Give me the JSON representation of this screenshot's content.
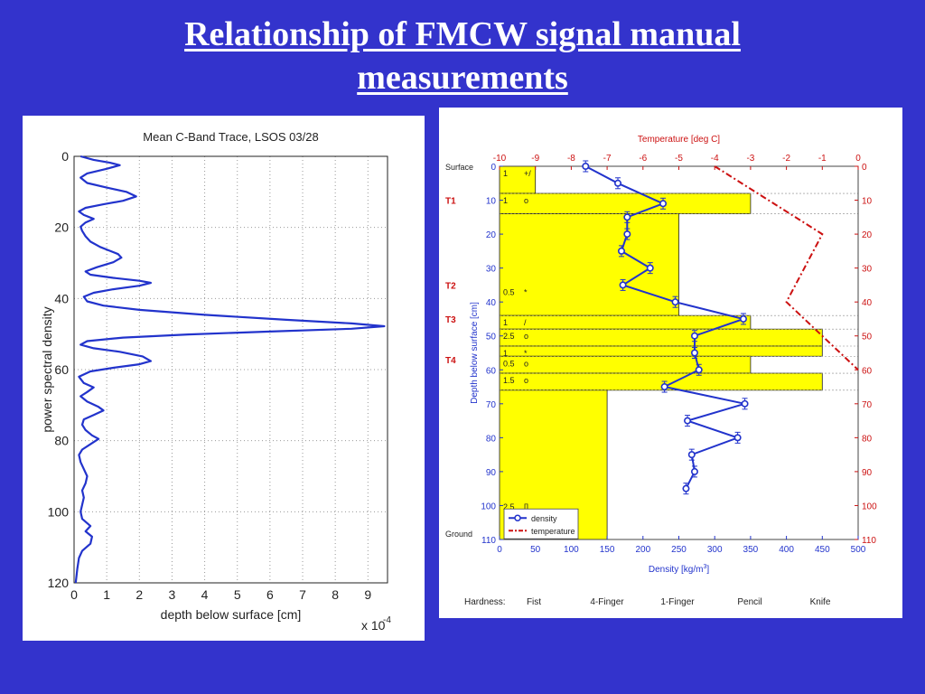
{
  "slide": {
    "title_line1": "Relationship of FMCW signal manual",
    "title_line2": "measurements"
  },
  "chart_data": [
    {
      "type": "line",
      "title": "Mean C-Band Trace, LSOS 03/28",
      "xlabel": "depth below surface [cm]",
      "ylabel": "power spectral density",
      "x_multiplier": "x 10",
      "x_multiplier_exp": "-4",
      "xlim": [
        0,
        9.6
      ],
      "ylim": [
        0,
        120
      ],
      "y_inverted": true,
      "grid": true,
      "xticks": [
        0,
        1,
        2,
        3,
        4,
        5,
        6,
        7,
        8,
        9
      ],
      "yticks": [
        0,
        20,
        40,
        60,
        80,
        100,
        120
      ],
      "series": [
        {
          "color": "#2233cc",
          "points": [
            [
              0.2,
              0
            ],
            [
              0.6,
              1
            ],
            [
              1.1,
              1.8
            ],
            [
              1.4,
              2.5
            ],
            [
              1.0,
              3.5
            ],
            [
              0.4,
              4.8
            ],
            [
              0.2,
              6
            ],
            [
              0.4,
              7.5
            ],
            [
              1.0,
              8.8
            ],
            [
              1.6,
              10
            ],
            [
              1.9,
              11.3
            ],
            [
              1.5,
              12.5
            ],
            [
              0.9,
              13.5
            ],
            [
              0.35,
              14.5
            ],
            [
              0.15,
              15.5
            ],
            [
              0.3,
              16.5
            ],
            [
              0.6,
              17.6
            ],
            [
              0.35,
              18.6
            ],
            [
              0.2,
              19.8
            ],
            [
              0.25,
              21
            ],
            [
              0.35,
              22.5
            ],
            [
              0.5,
              24
            ],
            [
              0.8,
              25.5
            ],
            [
              1.1,
              26.6
            ],
            [
              1.35,
              27.5
            ],
            [
              1.45,
              28.5
            ],
            [
              1.2,
              29.8
            ],
            [
              0.7,
              31.2
            ],
            [
              0.35,
              32.4
            ],
            [
              0.5,
              33.3
            ],
            [
              1.2,
              34.2
            ],
            [
              2.0,
              35
            ],
            [
              2.35,
              35.6
            ],
            [
              2.0,
              36.4
            ],
            [
              1.2,
              37.4
            ],
            [
              0.6,
              38.4
            ],
            [
              0.3,
              39.5
            ],
            [
              0.4,
              40.8
            ],
            [
              0.9,
              42
            ],
            [
              2.0,
              43.2
            ],
            [
              4.0,
              44.6
            ],
            [
              6.5,
              46
            ],
            [
              8.5,
              47
            ],
            [
              9.5,
              47.8
            ],
            [
              8.5,
              48.5
            ],
            [
              6.0,
              49.3
            ],
            [
              3.5,
              50.1
            ],
            [
              1.5,
              51
            ],
            [
              0.4,
              52
            ],
            [
              0.2,
              53
            ],
            [
              0.6,
              54
            ],
            [
              1.4,
              55
            ],
            [
              2.1,
              56.3
            ],
            [
              2.35,
              57.6
            ],
            [
              2.0,
              58.5
            ],
            [
              1.2,
              59.5
            ],
            [
              0.5,
              60.5
            ],
            [
              0.15,
              62
            ],
            [
              0.3,
              63.8
            ],
            [
              0.6,
              65
            ],
            [
              0.4,
              66.3
            ],
            [
              0.2,
              67.5
            ],
            [
              0.4,
              69
            ],
            [
              0.75,
              70.5
            ],
            [
              0.9,
              71.5
            ],
            [
              0.6,
              72.8
            ],
            [
              0.3,
              74
            ],
            [
              0.25,
              75.5
            ],
            [
              0.35,
              77
            ],
            [
              0.55,
              78.5
            ],
            [
              0.75,
              79.5
            ],
            [
              0.5,
              81
            ],
            [
              0.25,
              82.5
            ],
            [
              0.15,
              84
            ],
            [
              0.2,
              86
            ],
            [
              0.3,
              88
            ],
            [
              0.4,
              90
            ],
            [
              0.35,
              92
            ],
            [
              0.25,
              94
            ],
            [
              0.3,
              96
            ],
            [
              0.25,
              98
            ],
            [
              0.2,
              100
            ],
            [
              0.25,
              102
            ],
            [
              0.5,
              104
            ],
            [
              0.35,
              105.5
            ],
            [
              0.55,
              107
            ],
            [
              0.5,
              109
            ],
            [
              0.25,
              111
            ],
            [
              0.15,
              113
            ],
            [
              0.1,
              116
            ],
            [
              0.05,
              120
            ]
          ]
        }
      ]
    },
    {
      "type": "line",
      "title_top_axis": "Temperature [deg C]",
      "xlabel": "Density [kg/m",
      "xlabel_sup": "3",
      "xlabel_close": "]",
      "ylabel": "Depth below surface [cm]",
      "xlim": [
        0,
        500
      ],
      "top_xlim": [
        -10,
        0
      ],
      "ylim": [
        0,
        110
      ],
      "y_inverted": true,
      "xticks": [
        0,
        50,
        100,
        150,
        200,
        250,
        300,
        350,
        400,
        450,
        500
      ],
      "top_xticks": [
        -10,
        -9,
        -8,
        -7,
        -6,
        -5,
        -4,
        -3,
        -2,
        -1,
        0
      ],
      "yticks": [
        0,
        10,
        20,
        30,
        40,
        50,
        60,
        70,
        80,
        90,
        100,
        110
      ],
      "layer_labels": [
        {
          "label": "Surface",
          "depth": 0
        },
        {
          "label": "T1",
          "depth": 10
        },
        {
          "label": "T2",
          "depth": 35
        },
        {
          "label": "T3",
          "depth": 45
        },
        {
          "label": "T4",
          "depth": 57
        },
        {
          "label": "Ground",
          "depth": 110
        }
      ],
      "hardness_bars": [
        {
          "top": 0,
          "bottom": 8,
          "value": 50,
          "label_a": "1",
          "label_b": "+/"
        },
        {
          "top": 8,
          "bottom": 14,
          "value": 350,
          "label_a": "1",
          "label_b": "o"
        },
        {
          "top": 14,
          "bottom": 44,
          "value": 250,
          "label_a": "0.5",
          "label_b": "*"
        },
        {
          "top": 44,
          "bottom": 48,
          "value": 350,
          "label_a": "1",
          "label_b": "/"
        },
        {
          "top": 48,
          "bottom": 53,
          "value": 450,
          "label_a": "2.5",
          "label_b": "o"
        },
        {
          "top": 53,
          "bottom": 56,
          "value": 450,
          "label_a": "1",
          "label_b": "*"
        },
        {
          "top": 56,
          "bottom": 61,
          "value": 350,
          "label_a": "0.5",
          "label_b": "o"
        },
        {
          "top": 61,
          "bottom": 66,
          "value": 450,
          "label_a": "1.5",
          "label_b": "o"
        },
        {
          "top": 66,
          "bottom": 110,
          "value": 150,
          "label_a": "2.5",
          "label_b": "[]",
          "label_c": "o"
        }
      ],
      "density": [
        {
          "depth": 0,
          "value": 120
        },
        {
          "depth": 5,
          "value": 165
        },
        {
          "depth": 11,
          "value": 228
        },
        {
          "depth": 15,
          "value": 178
        },
        {
          "depth": 20,
          "value": 178
        },
        {
          "depth": 25,
          "value": 170
        },
        {
          "depth": 30,
          "value": 210
        },
        {
          "depth": 35,
          "value": 172
        },
        {
          "depth": 40,
          "value": 245
        },
        {
          "depth": 45,
          "value": 340
        },
        {
          "depth": 50,
          "value": 272
        },
        {
          "depth": 55,
          "value": 272
        },
        {
          "depth": 60,
          "value": 278
        },
        {
          "depth": 65,
          "value": 230
        },
        {
          "depth": 70,
          "value": 342
        },
        {
          "depth": 75,
          "value": 262
        },
        {
          "depth": 80,
          "value": 332
        },
        {
          "depth": 85,
          "value": 268
        },
        {
          "depth": 90,
          "value": 272
        },
        {
          "depth": 95,
          "value": 260
        }
      ],
      "temperature": [
        {
          "depth": 0,
          "value": -4.0
        },
        {
          "depth": 20,
          "value": -1.0
        },
        {
          "depth": 40,
          "value": -2.0
        },
        {
          "depth": 60,
          "value": 0.0
        }
      ],
      "legend": {
        "density": "density",
        "temperature": "temperature",
        "position": "bottom-left"
      },
      "hardness": {
        "label": "Hardness:",
        "levels": [
          "Fist",
          "4-Finger",
          "1-Finger",
          "Pencil",
          "Knife"
        ]
      },
      "colors": {
        "density": "#2233cc",
        "temperature": "#cc1111",
        "bars": "#ffff00"
      }
    }
  ]
}
